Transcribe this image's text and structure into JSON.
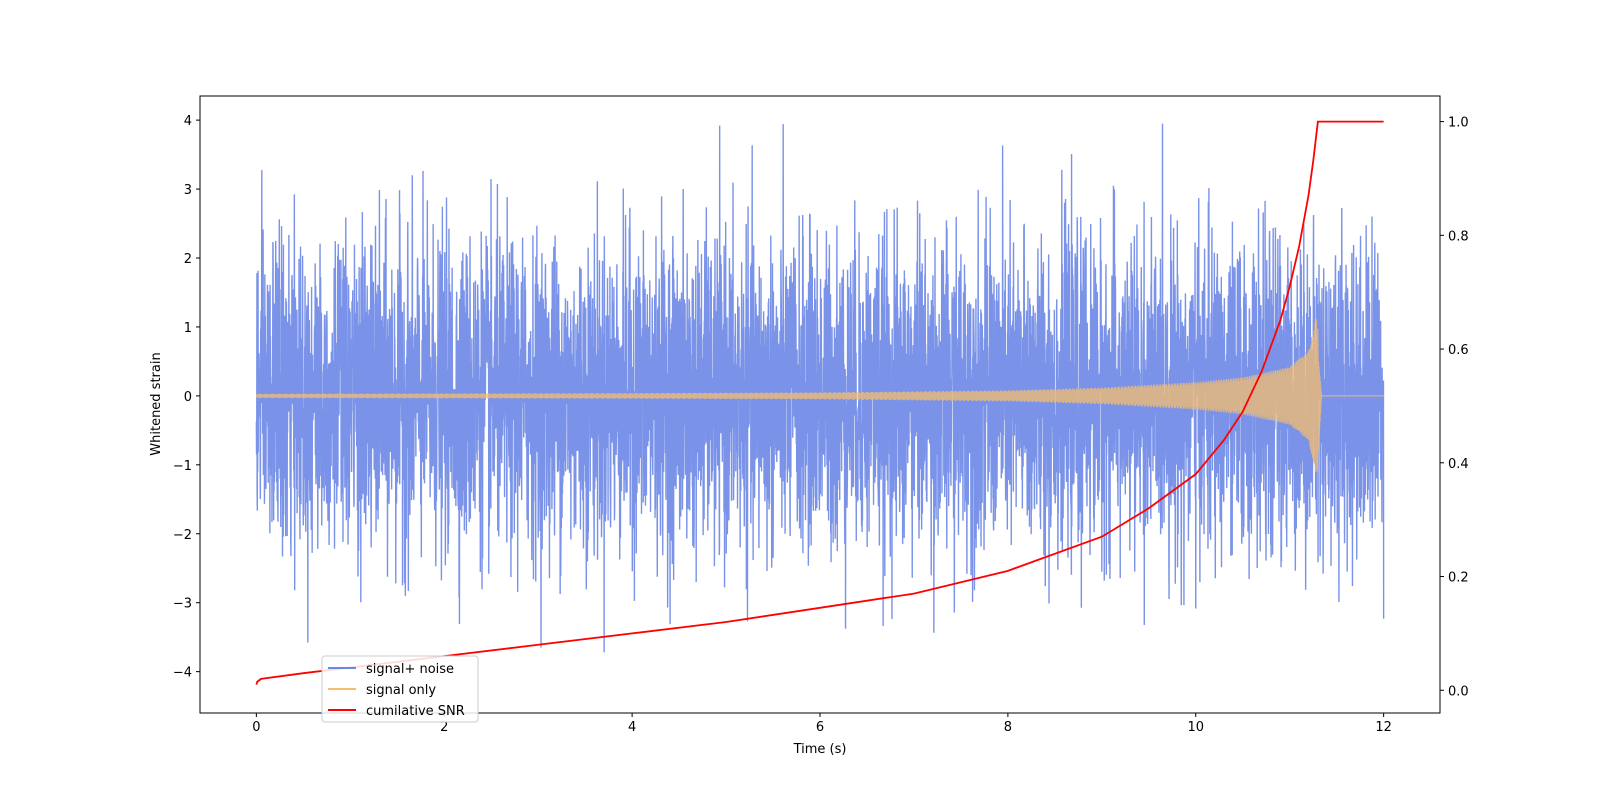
{
  "chart_data": {
    "type": "line",
    "title": "",
    "xlabel": "Time (s)",
    "ylabel_left": "Whitened strain",
    "ylabel_right": "",
    "xlim": [
      -0.6,
      12.6
    ],
    "ylim_left": [
      -4.6,
      4.35
    ],
    "ylim_right": [
      -0.04,
      1.045
    ],
    "x_ticks": [
      0,
      2,
      4,
      6,
      8,
      10,
      12
    ],
    "y_ticks_left": [
      -4,
      -3,
      -2,
      -1,
      0,
      1,
      2,
      3,
      4
    ],
    "y_ticks_right": [
      0.0,
      0.2,
      0.4,
      0.6,
      0.8,
      1.0
    ],
    "x_tick_labels": [
      "0",
      "2",
      "4",
      "6",
      "8",
      "10",
      "12"
    ],
    "y_tick_labels_left": [
      "−4",
      "−3",
      "−2",
      "−1",
      "0",
      "1",
      "2",
      "3",
      "4"
    ],
    "y_tick_labels_right": [
      "0.0",
      "0.2",
      "0.4",
      "0.6",
      "0.8",
      "1.0"
    ],
    "grid": false,
    "legend_placement": "lower-left",
    "series": [
      {
        "name": "signal+ noise",
        "axis": "left",
        "color": "#6b87e6",
        "kind": "noise",
        "x_range": [
          0,
          12
        ],
        "std": 1.0,
        "y_range": [
          -4.15,
          3.95
        ]
      },
      {
        "name": "signal only",
        "axis": "left",
        "color": "#f5be6e",
        "kind": "chirp",
        "x_range": [
          0,
          12
        ],
        "merger_time": 11.3,
        "peak_amplitude": 1.12,
        "envelope": [
          [
            0,
            0.03
          ],
          [
            2,
            0.035
          ],
          [
            4,
            0.04
          ],
          [
            6,
            0.05
          ],
          [
            8,
            0.08
          ],
          [
            9,
            0.12
          ],
          [
            10,
            0.2
          ],
          [
            10.5,
            0.27
          ],
          [
            11,
            0.42
          ],
          [
            11.2,
            0.65
          ],
          [
            11.28,
            1.12
          ]
        ]
      },
      {
        "name": "cumilative SNR",
        "axis": "right",
        "color": "#ff0000",
        "kind": "line",
        "x": [
          0,
          0.01,
          0.05,
          0.5,
          1,
          2,
          3,
          4,
          5,
          6,
          7,
          8,
          9,
          9.5,
          10,
          10.3,
          10.5,
          10.7,
          10.9,
          11.0,
          11.1,
          11.2,
          11.25,
          11.3,
          11.35,
          12.0
        ],
        "values": [
          0.01,
          0.015,
          0.02,
          0.03,
          0.04,
          0.06,
          0.08,
          0.1,
          0.12,
          0.145,
          0.17,
          0.21,
          0.27,
          0.32,
          0.38,
          0.44,
          0.49,
          0.56,
          0.65,
          0.71,
          0.78,
          0.87,
          0.93,
          1.0,
          1.0,
          1.0
        ]
      }
    ]
  }
}
